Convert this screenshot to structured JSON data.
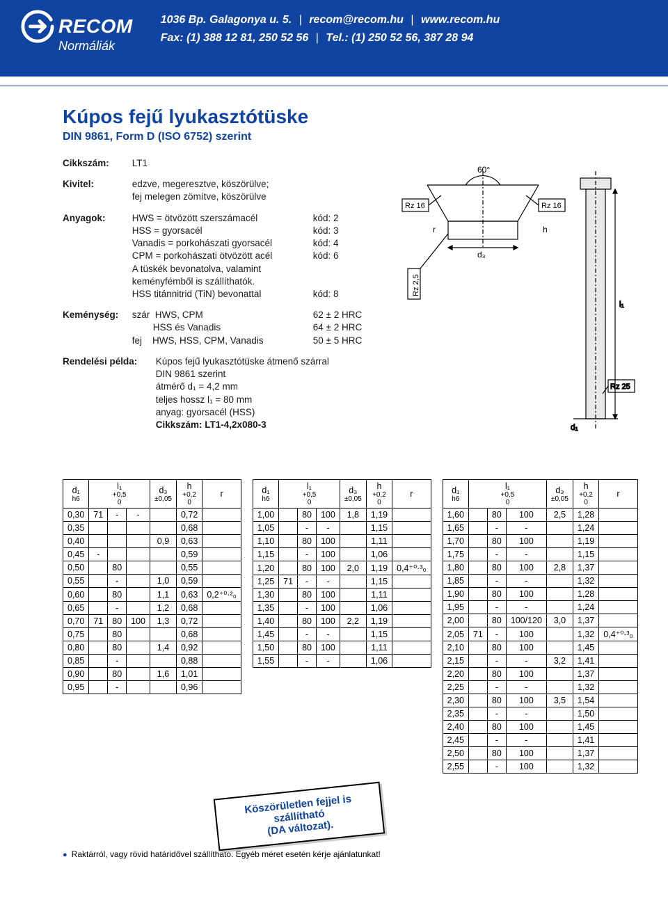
{
  "header": {
    "logo_text": "RECOM",
    "logo_sub": "Normáliák",
    "address": "1036 Bp. Galagonya u. 5.",
    "email": "recom@recom.hu",
    "web": "www.recom.hu",
    "fax": "Fax: (1) 388 12 81, 250 52 56",
    "tel": "Tel.: (1) 250 52 56, 387 28 94"
  },
  "product": {
    "title": "Kúpos fejű  lyukasztótüske",
    "subtitle": "DIN 9861, Form D (ISO 6752) szerint",
    "code_label": "Cikkszám:",
    "code": "LT1",
    "design_label": "Kivitel:",
    "design": "edzve, megeresztve, köszörülve;\nfej melegen zömítve, köszörülve",
    "materials_label": "Anyagok:",
    "materials": [
      {
        "l": "HWS   = ötvözött szerszámacél",
        "r": "kód: 2"
      },
      {
        "l": "HSS   = gyorsacél",
        "r": "kód: 3"
      },
      {
        "l": "Vanadis = porkohászati gyorsacél",
        "r": "kód: 4"
      },
      {
        "l": "CPM   = porkohászati ötvözött acél",
        "r": "kód: 6"
      },
      {
        "l": "A tüskék bevonatolva, valamint\nkeményfémből is szállíthatók.",
        "r": ""
      },
      {
        "l": "HSS titánnitrid (TiN) bevonattal",
        "r": "kód: 8"
      }
    ],
    "hardness_label": "Keménység:",
    "hardness": [
      {
        "l": "szár  HWS, CPM",
        "r": "62 ± 2 HRC"
      },
      {
        "l": "        HSS és Vanadis",
        "r": "64 ± 2 HRC"
      },
      {
        "l": "fej    HWS, HSS, CPM, Vanadis",
        "r": "50 ± 5 HRC"
      }
    ],
    "order_label": "Rendelési példa:",
    "order": "Kúpos fejű lyukasztótüske átmenő szárral\nDIN 9861 szerint\nátmérő d₁ = 4,2 mm\nteljes hossz l₁ = 80 mm\nanyag: gyorsacél (HSS)",
    "order_bold": "Cikkszám: LT1-4,2x080-3"
  },
  "diagram": {
    "angle": "60°",
    "labels": [
      "d₃",
      "Rz 16",
      "Rz 16",
      "Rz 2,5",
      "r",
      "h",
      "l₁",
      "Rz 25",
      "d₁"
    ],
    "colors": {
      "line": "#000000",
      "fill": "#e8e8e8"
    }
  },
  "table_headers": {
    "d1": "d₁",
    "d1s": "h6",
    "l1": "l₁",
    "l1s": "+0,5\n0",
    "d3": "d₃",
    "d3s": "±0,05",
    "h": "h",
    "hs": "+0,2\n0",
    "r": "r"
  },
  "table1": {
    "rows": [
      [
        "0,30",
        "71",
        "-",
        "-",
        "",
        "0,72",
        ""
      ],
      [
        "0,35",
        "",
        "",
        "",
        "",
        "0,68",
        ""
      ],
      [
        "0,40",
        "",
        "",
        "",
        "0,9",
        "0,63",
        ""
      ],
      [
        "0,45",
        "-",
        "",
        "",
        "",
        "0,59",
        ""
      ],
      [
        "0,50",
        "",
        "80",
        "",
        "",
        "0,55",
        ""
      ],
      [
        "0,55",
        "",
        "-",
        "",
        "1,0",
        "0,59",
        ""
      ],
      [
        "0,60",
        "",
        "80",
        "",
        "1,1",
        "0,63",
        "0,2⁺⁰·²₀"
      ],
      [
        "0,65",
        "",
        "-",
        "",
        "1,2",
        "0,68",
        ""
      ],
      [
        "0,70",
        "71",
        "80",
        "100",
        "1,3",
        "0,72",
        ""
      ],
      [
        "0,75",
        "",
        "80",
        "",
        "",
        "0,68",
        ""
      ],
      [
        "0,80",
        "",
        "80",
        "",
        "1,4",
        "0,92",
        ""
      ],
      [
        "0,85",
        "",
        "-",
        "",
        "",
        "0,88",
        ""
      ],
      [
        "0,90",
        "",
        "80",
        "",
        "1,6",
        "1,01",
        ""
      ],
      [
        "0,95",
        "",
        "-",
        "",
        "",
        "0,96",
        ""
      ]
    ]
  },
  "table2": {
    "rows": [
      [
        "1,00",
        "",
        "80",
        "100",
        "1,8",
        "1,19",
        ""
      ],
      [
        "1,05",
        "",
        "-",
        "-",
        "",
        "1,15",
        ""
      ],
      [
        "1,10",
        "",
        "80",
        "100",
        "",
        "1,11",
        ""
      ],
      [
        "1,15",
        "",
        "-",
        "100",
        "",
        "1,06",
        ""
      ],
      [
        "1,20",
        "",
        "80",
        "100",
        "2,0",
        "1,19",
        "0,4⁺⁰·³₀"
      ],
      [
        "1,25",
        "71",
        "-",
        "-",
        "",
        "1,15",
        ""
      ],
      [
        "1,30",
        "",
        "80",
        "100",
        "",
        "1,11",
        ""
      ],
      [
        "1,35",
        "",
        "-",
        "100",
        "",
        "1,06",
        ""
      ],
      [
        "1,40",
        "",
        "80",
        "100",
        "2,2",
        "1,19",
        ""
      ],
      [
        "1,45",
        "",
        "-",
        "-",
        "",
        "1,15",
        ""
      ],
      [
        "1,50",
        "",
        "80",
        "100",
        "",
        "1,11",
        ""
      ],
      [
        "1,55",
        "",
        "-",
        "-",
        "",
        "1,06",
        ""
      ]
    ]
  },
  "table3": {
    "rows": [
      [
        "1,60",
        "",
        "80",
        "100",
        "2,5",
        "1,28",
        ""
      ],
      [
        "1,65",
        "",
        "-",
        "-",
        "",
        "1,24",
        ""
      ],
      [
        "1,70",
        "",
        "80",
        "100",
        "",
        "1,19",
        ""
      ],
      [
        "1,75",
        "",
        "-",
        "-",
        "",
        "1,15",
        ""
      ],
      [
        "1,80",
        "",
        "80",
        "100",
        "2,8",
        "1,37",
        ""
      ],
      [
        "1,85",
        "",
        "-",
        "-",
        "",
        "1,32",
        ""
      ],
      [
        "1,90",
        "",
        "80",
        "100",
        "",
        "1,28",
        ""
      ],
      [
        "1,95",
        "",
        "-",
        "-",
        "",
        "1,24",
        ""
      ],
      [
        "2,00",
        "",
        "80",
        "100/120",
        "3,0",
        "1,37",
        ""
      ],
      [
        "2,05",
        "71",
        "-",
        "100",
        "",
        "1,32",
        "0,4⁺⁰·³₀"
      ],
      [
        "2,10",
        "",
        "80",
        "100",
        "",
        "1,45",
        ""
      ],
      [
        "2,15",
        "",
        "-",
        "-",
        "3,2",
        "1,41",
        ""
      ],
      [
        "2,20",
        "",
        "80",
        "100",
        "",
        "1,37",
        ""
      ],
      [
        "2,25",
        "",
        "-",
        "-",
        "",
        "1,32",
        ""
      ],
      [
        "2,30",
        "",
        "80",
        "100",
        "3,5",
        "1,54",
        ""
      ],
      [
        "2,35",
        "",
        "-",
        "-",
        "",
        "1,50",
        ""
      ],
      [
        "2,40",
        "",
        "80",
        "100",
        "",
        "1,45",
        ""
      ],
      [
        "2,45",
        "",
        "-",
        "-",
        "",
        "1,41",
        ""
      ],
      [
        "2,50",
        "",
        "80",
        "100",
        "",
        "1,37",
        ""
      ],
      [
        "2,55",
        "",
        "-",
        "100",
        "",
        "1,32",
        ""
      ]
    ]
  },
  "callout": "Köszörületlen fejjel is szállítható\n(DA változat).",
  "footer": "Raktárról, vagy rövid határidővel szállítható. Egyéb méret esetén kérje ajánlatunkat!"
}
